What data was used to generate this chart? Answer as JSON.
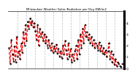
{
  "title": "Milwaukee Weather Solar Radiation per Day KW/m2",
  "background_color": "#ffffff",
  "plot_bg_color": "#ffffff",
  "line_color": "#dd0000",
  "marker_color": "#000000",
  "grid_color": "#bbbbbb",
  "ylim": [
    0,
    5
  ],
  "y_ticks": [
    0,
    1,
    2,
    3,
    4
  ],
  "y_tick_labels": [
    "0",
    "1",
    "2",
    "3",
    "4"
  ],
  "values": [
    1.8,
    0.4,
    2.5,
    1.2,
    0.6,
    1.9,
    0.5,
    2.8,
    1.0,
    1.5,
    0.8,
    2.2,
    1.4,
    3.2,
    2.0,
    3.8,
    2.4,
    4.1,
    3.5,
    4.4,
    3.8,
    4.2,
    3.6,
    4.0,
    3.3,
    2.5,
    3.8,
    2.0,
    3.5,
    2.8,
    3.2,
    2.4,
    3.0,
    2.2,
    2.8,
    1.8,
    2.5,
    2.0,
    1.6,
    2.2,
    1.4,
    1.9,
    1.5,
    2.1,
    1.3,
    1.7,
    1.0,
    1.5,
    0.9,
    2.0,
    1.2,
    2.4,
    1.6,
    0.8,
    2.2,
    1.0,
    1.7,
    0.5,
    1.2,
    0.7,
    1.5,
    2.0,
    0.8,
    2.5,
    1.2,
    3.0,
    1.8,
    3.5,
    2.2,
    3.8,
    2.8,
    3.2,
    2.5,
    3.0,
    2.2,
    2.8,
    2.0,
    2.5,
    1.8,
    2.2,
    2.0,
    1.6,
    2.3,
    1.5,
    2.0,
    1.3,
    1.8,
    1.2,
    1.6,
    1.0,
    1.5,
    2.2,
    0.8,
    1.5,
    0.5,
    1.2,
    0.3,
    0.8,
    0.2,
    0.5,
    0.4,
    0.2,
    0.1,
    0.4
  ],
  "vgrid_interval": 8,
  "n_vgrids": 13
}
